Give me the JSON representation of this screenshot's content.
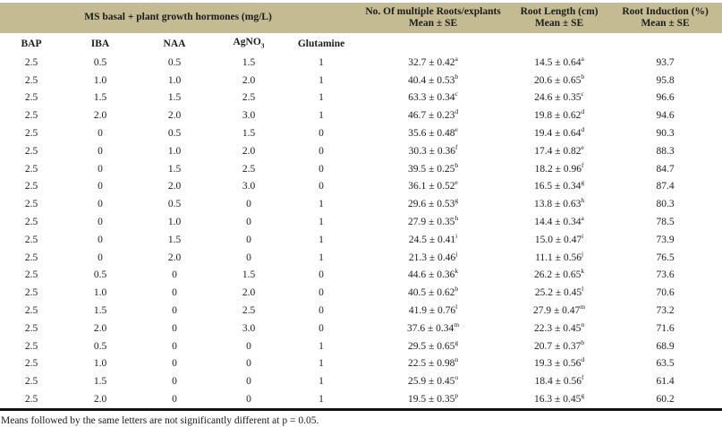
{
  "colors": {
    "header_bg": "#c5bb92",
    "rule": "#111111"
  },
  "table": {
    "header": {
      "group_title": "MS basal + plant growth hormones (mg/L)",
      "col_roots": {
        "line1": "No. Of multiple Roots/explants",
        "line2": "Mean ± SE"
      },
      "col_length": {
        "line1": "Root Length (cm)",
        "line2": "Mean ± SE"
      },
      "col_induction": {
        "line1": "Root Induction (%)",
        "line2": "Mean ± SE"
      },
      "sub_columns": [
        "BAP",
        "IBA",
        "NAA",
        "AgNO",
        "Glutamine"
      ],
      "agno3_sub": "3"
    },
    "rows": [
      {
        "bap": "2.5",
        "iba": "0.5",
        "naa": "0.5",
        "agno3": "1.5",
        "glutamine": "1",
        "roots": "32.7 ± 0.42",
        "roots_sup": "a",
        "length": "14.5 ± 0.64",
        "length_sup": "a",
        "induction": "93.7"
      },
      {
        "bap": "2.5",
        "iba": "1.0",
        "naa": "1.0",
        "agno3": "2.0",
        "glutamine": "1",
        "roots": "40.4 ± 0.53",
        "roots_sup": "b",
        "length": "20.6 ± 0.65",
        "length_sup": "b",
        "induction": "95.8"
      },
      {
        "bap": "2.5",
        "iba": "1.5",
        "naa": "1.5",
        "agno3": "2.5",
        "glutamine": "1",
        "roots": "63.3 ± 0.34",
        "roots_sup": "c",
        "length": "24.6 ± 0.35",
        "length_sup": "c",
        "induction": "96.6"
      },
      {
        "bap": "2.5",
        "iba": "2.0",
        "naa": "2.0",
        "agno3": "3.0",
        "glutamine": "1",
        "roots": "46.7 ± 0.23",
        "roots_sup": "d",
        "length": "19.8 ± 0.62",
        "length_sup": "d",
        "induction": "94.6"
      },
      {
        "bap": "2.5",
        "iba": "0",
        "naa": "0.5",
        "agno3": "1.5",
        "glutamine": "0",
        "roots": "35.6 ± 0.48",
        "roots_sup": "e",
        "length": "19.4 ± 0.64",
        "length_sup": "d",
        "induction": "90.3"
      },
      {
        "bap": "2.5",
        "iba": "0",
        "naa": "1.0",
        "agno3": "2.0",
        "glutamine": "0",
        "roots": "30.3 ± 0.36",
        "roots_sup": "f",
        "length": "17.4 ± 0.82",
        "length_sup": "e",
        "induction": "88.3"
      },
      {
        "bap": "2.5",
        "iba": "0",
        "naa": "1.5",
        "agno3": "2.5",
        "glutamine": "0",
        "roots": "39.5 ± 0.25",
        "roots_sup": "b",
        "length": "18.2 ± 0.96",
        "length_sup": "f",
        "induction": "84.7"
      },
      {
        "bap": "2.5",
        "iba": "0",
        "naa": "2.0",
        "agno3": "3.0",
        "glutamine": "0",
        "roots": "36.1 ± 0.52",
        "roots_sup": "e",
        "length": "16.5 ± 0.34",
        "length_sup": "g",
        "induction": "87.4"
      },
      {
        "bap": "2.5",
        "iba": "0",
        "naa": "0.5",
        "agno3": "0",
        "glutamine": "1",
        "roots": "29.6 ± 0.53",
        "roots_sup": "g",
        "length": "13.8 ± 0.63",
        "length_sup": "h",
        "induction": "80.3"
      },
      {
        "bap": "2.5",
        "iba": "0",
        "naa": "1.0",
        "agno3": "0",
        "glutamine": "1",
        "roots": "27.9 ± 0.35",
        "roots_sup": "h",
        "length": "14.4 ± 0.34",
        "length_sup": "a",
        "induction": "78.5"
      },
      {
        "bap": "2.5",
        "iba": "0",
        "naa": "1.5",
        "agno3": "0",
        "glutamine": "1",
        "roots": "24.5 ± 0.41",
        "roots_sup": "i",
        "length": "15.0 ± 0.47",
        "length_sup": "i",
        "induction": "73.9"
      },
      {
        "bap": "2.5",
        "iba": "0",
        "naa": "2.0",
        "agno3": "0",
        "glutamine": "1",
        "roots": "21.3 ± 0.46",
        "roots_sup": "j",
        "length": "11.1 ± 0.56",
        "length_sup": "j",
        "induction": "76.5"
      },
      {
        "bap": "2.5",
        "iba": "0.5",
        "naa": "0",
        "agno3": "1.5",
        "glutamine": "0",
        "roots": "44.6 ± 0.36",
        "roots_sup": "k",
        "length": "26.2 ± 0.65",
        "length_sup": "k",
        "induction": "73.6"
      },
      {
        "bap": "2.5",
        "iba": "1.0",
        "naa": "0",
        "agno3": "2.0",
        "glutamine": "0",
        "roots": "40.5 ± 0.62",
        "roots_sup": "b",
        "length": "25.2 ± 0.45",
        "length_sup": "l",
        "induction": "70.6"
      },
      {
        "bap": "2.5",
        "iba": "1.5",
        "naa": "0",
        "agno3": "2.5",
        "glutamine": "0",
        "roots": "41.9 ± 0.76",
        "roots_sup": "l",
        "length": "27.9 ± 0.47",
        "length_sup": "m",
        "induction": "73.2"
      },
      {
        "bap": "2.5",
        "iba": "2.0",
        "naa": "0",
        "agno3": "3.0",
        "glutamine": "0",
        "roots": "37.6 ± 0.34",
        "roots_sup": "m",
        "length": "22.3 ± 0.45",
        "length_sup": "n",
        "induction": "71.6"
      },
      {
        "bap": "2.5",
        "iba": "0.5",
        "naa": "0",
        "agno3": "0",
        "glutamine": "1",
        "roots": "29.5 ± 0.65",
        "roots_sup": "g",
        "length": "20.7 ± 0.37",
        "length_sup": "b",
        "induction": "68.9"
      },
      {
        "bap": "2.5",
        "iba": "1.0",
        "naa": "0",
        "agno3": "0",
        "glutamine": "1",
        "roots": "22.5 ± 0.98",
        "roots_sup": "n",
        "length": "19.3 ± 0.56",
        "length_sup": "d",
        "induction": "63.5"
      },
      {
        "bap": "2.5",
        "iba": "1.5",
        "naa": "0",
        "agno3": "0",
        "glutamine": "1",
        "roots": "25.9 ± 0.45",
        "roots_sup": "o",
        "length": "18.4 ± 0.56",
        "length_sup": "f",
        "induction": "61.4"
      },
      {
        "bap": "2.5",
        "iba": "2.0",
        "naa": "0",
        "agno3": "0",
        "glutamine": "1",
        "roots": "19.5 ± 0.35",
        "roots_sup": "p",
        "length": "16.3 ± 0.45",
        "length_sup": "g",
        "induction": "60.2"
      }
    ],
    "footnote": "Means followed by the same letters are not significantly different at p = 0.05."
  }
}
